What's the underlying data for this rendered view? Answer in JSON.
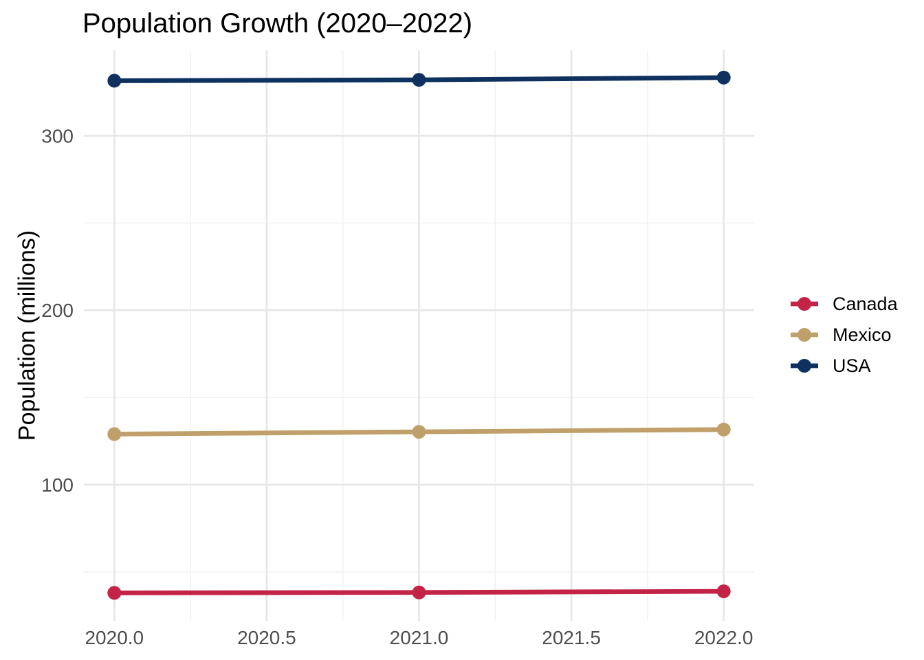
{
  "chart_data": {
    "type": "line",
    "title": "Population Growth (2020–2022)",
    "xlabel": "",
    "ylabel": "Population (millions)",
    "x": [
      2020,
      2021,
      2022
    ],
    "series": [
      {
        "name": "Canada",
        "color": "#C32346",
        "values": [
          38.0,
          38.25,
          38.9
        ]
      },
      {
        "name": "Mexico",
        "color": "#BFA06A",
        "values": [
          129.0,
          130.3,
          131.6
        ]
      },
      {
        "name": "USA",
        "color": "#0E3160",
        "values": [
          331.5,
          332.0,
          333.3
        ]
      }
    ],
    "axes": {
      "xlim": [
        2019.9,
        2022.1
      ],
      "ylim": [
        22,
        349
      ],
      "x_ticks": {
        "values": [
          2020,
          2020.5,
          2021,
          2021.5,
          2022
        ],
        "labels": [
          "2020.0",
          "2020.5",
          "2021.0",
          "2021.5",
          "2022.0"
        ]
      },
      "x_minor": [
        2020.25,
        2020.75,
        2021.25,
        2021.75
      ],
      "y_ticks": {
        "values": [
          100,
          200,
          300
        ],
        "labels": [
          "100",
          "200",
          "300"
        ]
      },
      "y_minor": [
        50,
        150,
        250
      ]
    },
    "grid": true,
    "legend_position": "right",
    "style": {
      "grid_major_color": "#E7E7E7",
      "grid_minor_color": "#F1F1F1",
      "tick_text_color": "#4D4D4D",
      "line_width": 6.8,
      "point_radius": 10,
      "background": "#FFFFFF"
    }
  }
}
